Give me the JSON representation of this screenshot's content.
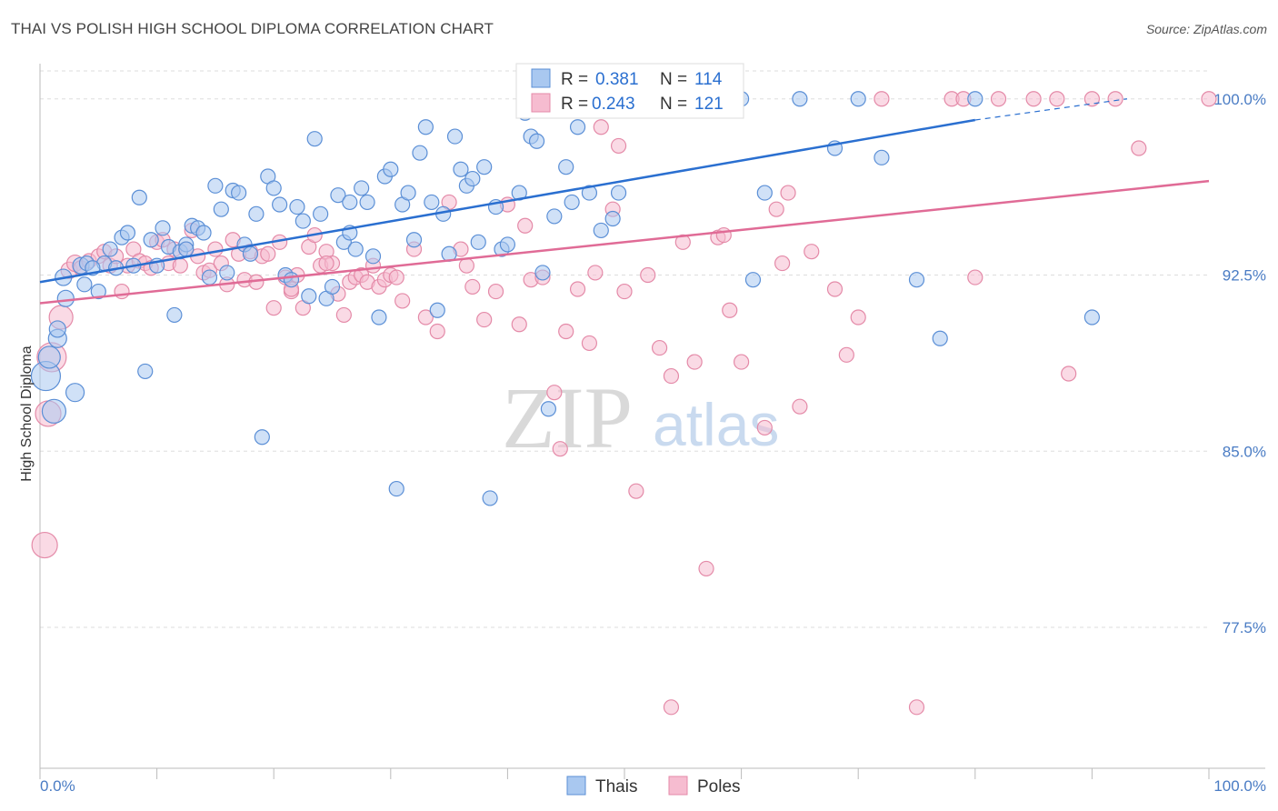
{
  "title": "THAI VS POLISH HIGH SCHOOL DIPLOMA CORRELATION CHART",
  "source": "Source: ZipAtlas.com",
  "watermark": {
    "zip": "ZIP",
    "atlas": "atlas"
  },
  "colors": {
    "thais_fill": "#a9c8f0",
    "thais_stroke": "#5b8fd6",
    "thais_line": "#2a6fd0",
    "poles_fill": "#f6bcd0",
    "poles_stroke": "#e48aa8",
    "poles_line": "#e06b96",
    "axis_text": "#4a7cc4",
    "grid": "#dddddd"
  },
  "legend": {
    "thais": {
      "r_label": "R = ",
      "r_value": "0.381",
      "n_label": "N = ",
      "n_value": "114"
    },
    "poles": {
      "r_label": "R = ",
      "r_value": "0.243",
      "n_label": "N = ",
      "n_value": "121"
    }
  },
  "bottom_legend": {
    "thais": "Thais",
    "poles": "Poles"
  },
  "chart_data": {
    "type": "scatter",
    "title": "THAI VS POLISH HIGH SCHOOL DIPLOMA CORRELATION CHART",
    "xlabel": "",
    "ylabel": "High School Diploma",
    "xlim": [
      0,
      100
    ],
    "ylim": [
      71.5,
      101.5
    ],
    "x_tick_labels": [
      "0.0%",
      "100.0%"
    ],
    "y_ticks": [
      77.5,
      85.0,
      92.5,
      100.0
    ],
    "y_tick_labels": [
      "77.5%",
      "85.0%",
      "92.5%",
      "100.0%"
    ],
    "grid": true,
    "legend_position": "top-center",
    "series": [
      {
        "name": "Thais",
        "r": 0.381,
        "n": 114,
        "trend": {
          "x0": 0,
          "y0": 92.2,
          "x1": 80,
          "y1": 99.1,
          "dashed_to_x": 93,
          "dashed_to_y": 100.0
        },
        "points": [
          [
            0.5,
            88.2,
            16
          ],
          [
            0.8,
            89.0,
            12
          ],
          [
            1.2,
            86.7,
            13
          ],
          [
            1.5,
            89.8,
            10
          ],
          [
            2.0,
            92.4,
            9
          ],
          [
            2.2,
            91.5,
            9
          ],
          [
            3.0,
            87.5,
            10
          ],
          [
            3.5,
            92.9,
            9
          ],
          [
            3.8,
            92.1,
            8
          ],
          [
            4.0,
            93.0,
            8
          ],
          [
            5.0,
            91.8,
            8
          ],
          [
            5.5,
            93.0,
            8
          ],
          [
            6.0,
            93.6,
            8
          ],
          [
            6.5,
            92.8,
            8
          ],
          [
            7.0,
            94.1,
            8
          ],
          [
            7.5,
            94.3,
            8
          ],
          [
            8.0,
            92.9,
            8
          ],
          [
            8.5,
            95.8,
            8
          ],
          [
            9.0,
            88.4,
            8
          ],
          [
            9.5,
            94.0,
            8
          ],
          [
            10.0,
            92.9,
            8
          ],
          [
            10.5,
            94.5,
            8
          ],
          [
            11,
            93.7,
            8
          ],
          [
            11.5,
            90.8,
            8
          ],
          [
            12,
            93.5,
            8
          ],
          [
            12.5,
            93.8,
            8
          ],
          [
            13,
            94.6,
            8
          ],
          [
            13.5,
            94.5,
            8
          ],
          [
            14,
            94.3,
            8
          ],
          [
            14.5,
            92.4,
            8
          ],
          [
            15,
            96.3,
            8
          ],
          [
            15.5,
            95.3,
            8
          ],
          [
            16,
            92.6,
            8
          ],
          [
            16.5,
            96.1,
            8
          ],
          [
            17,
            96.0,
            8
          ],
          [
            17.5,
            93.8,
            8
          ],
          [
            18,
            93.4,
            8
          ],
          [
            18.5,
            95.1,
            8
          ],
          [
            19,
            85.6,
            8
          ],
          [
            19.5,
            96.7,
            8
          ],
          [
            20,
            96.2,
            8
          ],
          [
            20.5,
            95.5,
            8
          ],
          [
            21,
            92.5,
            8
          ],
          [
            21.5,
            92.3,
            8
          ],
          [
            22,
            95.4,
            8
          ],
          [
            22.5,
            94.8,
            8
          ],
          [
            23,
            91.6,
            8
          ],
          [
            23.5,
            98.3,
            8
          ],
          [
            24,
            95.1,
            8
          ],
          [
            24.5,
            91.5,
            8
          ],
          [
            25,
            92.0,
            8
          ],
          [
            25.5,
            95.9,
            8
          ],
          [
            26,
            93.9,
            8
          ],
          [
            26.5,
            94.3,
            8
          ],
          [
            27,
            93.6,
            8
          ],
          [
            27.5,
            96.2,
            8
          ],
          [
            28,
            95.6,
            8
          ],
          [
            28.5,
            93.3,
            8
          ],
          [
            29,
            90.7,
            8
          ],
          [
            29.5,
            96.7,
            8
          ],
          [
            30,
            97.0,
            8
          ],
          [
            30.5,
            83.4,
            8
          ],
          [
            31,
            95.5,
            8
          ],
          [
            31.5,
            96.0,
            8
          ],
          [
            32,
            94.0,
            8
          ],
          [
            32.5,
            97.7,
            8
          ],
          [
            33,
            98.8,
            8
          ],
          [
            33.5,
            95.6,
            8
          ],
          [
            34,
            91.0,
            8
          ],
          [
            34.5,
            95.1,
            8
          ],
          [
            35,
            93.4,
            8
          ],
          [
            35.5,
            98.4,
            8
          ],
          [
            36,
            97.0,
            8
          ],
          [
            36.5,
            96.3,
            8
          ],
          [
            37,
            96.6,
            8
          ],
          [
            37.5,
            93.9,
            8
          ],
          [
            38,
            97.1,
            8
          ],
          [
            38.5,
            83.0,
            8
          ],
          [
            39,
            95.4,
            8
          ],
          [
            39.5,
            93.6,
            8
          ],
          [
            40,
            93.8,
            8
          ],
          [
            41,
            96.0,
            8
          ],
          [
            41.5,
            99.4,
            8
          ],
          [
            42,
            98.4,
            8
          ],
          [
            42.5,
            98.2,
            8
          ],
          [
            43,
            92.6,
            8
          ],
          [
            43.5,
            86.8,
            8
          ],
          [
            44,
            95.0,
            8
          ],
          [
            45,
            97.1,
            8
          ],
          [
            45.5,
            95.6,
            8
          ],
          [
            46,
            98.8,
            8
          ],
          [
            47,
            96.0,
            8
          ],
          [
            48,
            94.4,
            8
          ],
          [
            49,
            94.9,
            8
          ],
          [
            49.5,
            96.0,
            8
          ],
          [
            52,
            100.0,
            8
          ],
          [
            55,
            100.0,
            8
          ],
          [
            58,
            100.0,
            8
          ],
          [
            60,
            100.0,
            8
          ],
          [
            61,
            92.3,
            8
          ],
          [
            62,
            96.0,
            8
          ],
          [
            65,
            100.0,
            8
          ],
          [
            68,
            97.9,
            8
          ],
          [
            72,
            97.5,
            8
          ],
          [
            75,
            92.3,
            8
          ],
          [
            77,
            89.8,
            8
          ],
          [
            80,
            100.0,
            8
          ],
          [
            70,
            100.0,
            8
          ],
          [
            90,
            90.7,
            8
          ],
          [
            57,
            100.0,
            8
          ],
          [
            26.5,
            95.6,
            8
          ],
          [
            12.5,
            93.6,
            8
          ],
          [
            4.5,
            92.8,
            8
          ],
          [
            1.5,
            90.2,
            9
          ]
        ]
      },
      {
        "name": "Poles",
        "r": 0.243,
        "n": 121,
        "trend": {
          "x0": 0,
          "y0": 91.3,
          "x1": 100,
          "y1": 96.5
        },
        "points": [
          [
            0.4,
            81.0,
            14
          ],
          [
            0.7,
            86.6,
            14
          ],
          [
            1.0,
            89.0,
            16
          ],
          [
            1.8,
            90.7,
            13
          ],
          [
            2.5,
            92.7,
            9
          ],
          [
            3.0,
            93.0,
            9
          ],
          [
            3.5,
            92.8,
            8
          ],
          [
            4.2,
            93.1,
            8
          ],
          [
            5,
            93.3,
            8
          ],
          [
            5.5,
            93.5,
            8
          ],
          [
            6,
            92.9,
            8
          ],
          [
            6.5,
            93.3,
            8
          ],
          [
            7.0,
            91.8,
            8
          ],
          [
            7.5,
            92.9,
            8
          ],
          [
            8,
            93.6,
            8
          ],
          [
            8.5,
            93.1,
            8
          ],
          [
            9.0,
            93.0,
            8
          ],
          [
            9.5,
            92.8,
            8
          ],
          [
            10,
            93.9,
            8
          ],
          [
            10.5,
            94.0,
            8
          ],
          [
            11,
            93.0,
            8
          ],
          [
            11.5,
            93.6,
            8
          ],
          [
            12,
            92.9,
            8
          ],
          [
            12.5,
            93.6,
            8
          ],
          [
            13,
            94.4,
            8
          ],
          [
            13.5,
            93.3,
            8
          ],
          [
            14,
            92.6,
            8
          ],
          [
            14.5,
            92.7,
            8
          ],
          [
            15,
            93.6,
            8
          ],
          [
            15.5,
            93.0,
            8
          ],
          [
            16,
            92.1,
            8
          ],
          [
            16.5,
            94.0,
            8
          ],
          [
            17,
            93.4,
            8
          ],
          [
            17.5,
            92.3,
            8
          ],
          [
            18,
            93.5,
            8
          ],
          [
            18.5,
            92.2,
            8
          ],
          [
            19,
            93.3,
            8
          ],
          [
            19.5,
            93.4,
            8
          ],
          [
            20,
            91.1,
            8
          ],
          [
            20.5,
            93.9,
            8
          ],
          [
            21,
            92.4,
            8
          ],
          [
            21.5,
            91.8,
            8
          ],
          [
            22,
            92.5,
            8
          ],
          [
            22.5,
            91.1,
            8
          ],
          [
            23,
            93.7,
            8
          ],
          [
            23.5,
            94.2,
            8
          ],
          [
            24,
            92.9,
            8
          ],
          [
            24.5,
            93.5,
            8
          ],
          [
            25,
            93.0,
            8
          ],
          [
            25.5,
            91.7,
            8
          ],
          [
            26,
            90.8,
            8
          ],
          [
            26.5,
            92.2,
            8
          ],
          [
            27,
            92.4,
            8
          ],
          [
            27.5,
            92.5,
            8
          ],
          [
            28,
            92.2,
            8
          ],
          [
            28.5,
            92.9,
            8
          ],
          [
            29,
            92.0,
            8
          ],
          [
            29.5,
            92.3,
            8
          ],
          [
            30,
            92.5,
            8
          ],
          [
            31,
            91.4,
            8
          ],
          [
            32,
            93.6,
            8
          ],
          [
            33,
            90.7,
            8
          ],
          [
            34,
            90.1,
            8
          ],
          [
            35,
            95.6,
            8
          ],
          [
            36,
            93.6,
            8
          ],
          [
            37,
            92.0,
            8
          ],
          [
            38,
            90.6,
            8
          ],
          [
            39,
            91.8,
            8
          ],
          [
            40,
            95.5,
            8
          ],
          [
            41,
            90.4,
            8
          ],
          [
            42,
            92.3,
            8
          ],
          [
            43,
            92.4,
            8
          ],
          [
            44,
            87.5,
            8
          ],
          [
            44.5,
            85.1,
            8
          ],
          [
            45,
            90.1,
            8
          ],
          [
            46,
            91.9,
            8
          ],
          [
            47,
            89.6,
            8
          ],
          [
            48,
            98.8,
            8
          ],
          [
            49,
            95.3,
            8
          ],
          [
            50,
            91.8,
            8
          ],
          [
            51,
            83.3,
            8
          ],
          [
            52,
            92.5,
            8
          ],
          [
            53,
            89.4,
            8
          ],
          [
            54,
            88.2,
            8
          ],
          [
            55,
            93.9,
            8
          ],
          [
            56,
            88.8,
            8
          ],
          [
            57,
            80.0,
            8
          ],
          [
            58,
            94.1,
            8
          ],
          [
            59,
            91.0,
            8
          ],
          [
            60,
            88.8,
            8
          ],
          [
            62,
            86.0,
            8
          ],
          [
            63,
            95.3,
            8
          ],
          [
            64,
            96.0,
            8
          ],
          [
            65,
            86.9,
            8
          ],
          [
            66,
            93.5,
            8
          ],
          [
            68,
            91.9,
            8
          ],
          [
            69,
            89.1,
            8
          ],
          [
            70,
            90.7,
            8
          ],
          [
            72,
            100.0,
            8
          ],
          [
            75,
            74.1,
            8
          ],
          [
            54,
            74.1,
            8
          ],
          [
            78,
            100.0,
            8
          ],
          [
            79,
            100.0,
            8
          ],
          [
            82,
            100.0,
            8
          ],
          [
            85,
            100.0,
            8
          ],
          [
            87,
            100.0,
            8
          ],
          [
            88,
            88.3,
            8
          ],
          [
            90,
            100.0,
            8
          ],
          [
            92,
            100.0,
            8
          ],
          [
            94,
            97.9,
            8
          ],
          [
            100,
            100.0,
            8
          ],
          [
            80,
            92.4,
            8
          ],
          [
            49.5,
            98.0,
            8
          ],
          [
            21.5,
            91.9,
            8
          ],
          [
            24.5,
            93.0,
            8
          ],
          [
            30.5,
            92.4,
            8
          ],
          [
            36.5,
            92.9,
            8
          ],
          [
            41.5,
            94.6,
            8
          ],
          [
            47.5,
            92.6,
            8
          ],
          [
            58.5,
            94.2,
            8
          ],
          [
            63.5,
            93.0,
            8
          ]
        ]
      }
    ]
  }
}
